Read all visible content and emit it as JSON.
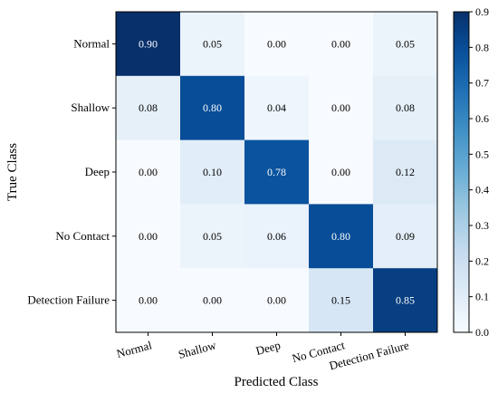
{
  "chart_data": {
    "type": "heatmap",
    "title": "",
    "xlabel": "Predicted Class",
    "ylabel": "True Class",
    "x_categories": [
      "Normal",
      "Shallow",
      "Deep",
      "No Contact",
      "Detection Failure"
    ],
    "y_categories": [
      "Normal",
      "Shallow",
      "Deep",
      "No Contact",
      "Detection Failure"
    ],
    "values": [
      [
        0.9,
        0.05,
        0.0,
        0.0,
        0.05
      ],
      [
        0.08,
        0.8,
        0.04,
        0.0,
        0.08
      ],
      [
        0.0,
        0.1,
        0.78,
        0.0,
        0.12
      ],
      [
        0.0,
        0.05,
        0.06,
        0.8,
        0.09
      ],
      [
        0.0,
        0.0,
        0.0,
        0.15,
        0.85
      ]
    ],
    "value_labels": [
      [
        "0.90",
        "0.05",
        "0.00",
        "0.00",
        "0.05"
      ],
      [
        "0.08",
        "0.80",
        "0.04",
        "0.00",
        "0.08"
      ],
      [
        "0.00",
        "0.10",
        "0.78",
        "0.00",
        "0.12"
      ],
      [
        "0.00",
        "0.05",
        "0.06",
        "0.80",
        "0.09"
      ],
      [
        "0.00",
        "0.00",
        "0.00",
        "0.15",
        "0.85"
      ]
    ],
    "colormap": "Blues",
    "colorbar": {
      "range": [
        0.0,
        0.9
      ],
      "ticks": [
        "0.0",
        "0.1",
        "0.2",
        "0.3",
        "0.4",
        "0.5",
        "0.6",
        "0.7",
        "0.8",
        "0.9"
      ]
    }
  }
}
